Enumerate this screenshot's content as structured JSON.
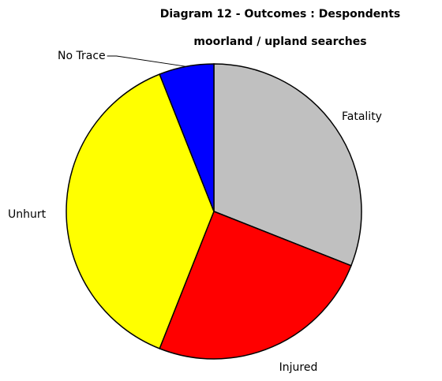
{
  "chart_data": {
    "type": "pie",
    "title": "Diagram 12 - Outcomes : Despondents",
    "subtitle": "moorland / upland searches",
    "categories": [
      "Fatality",
      "Injured",
      "Unhurt",
      "No Trace"
    ],
    "values": [
      31,
      25,
      38,
      6
    ],
    "colors": [
      "#c0c0c0",
      "#ff0000",
      "#ffff00",
      "#0000ff"
    ]
  }
}
